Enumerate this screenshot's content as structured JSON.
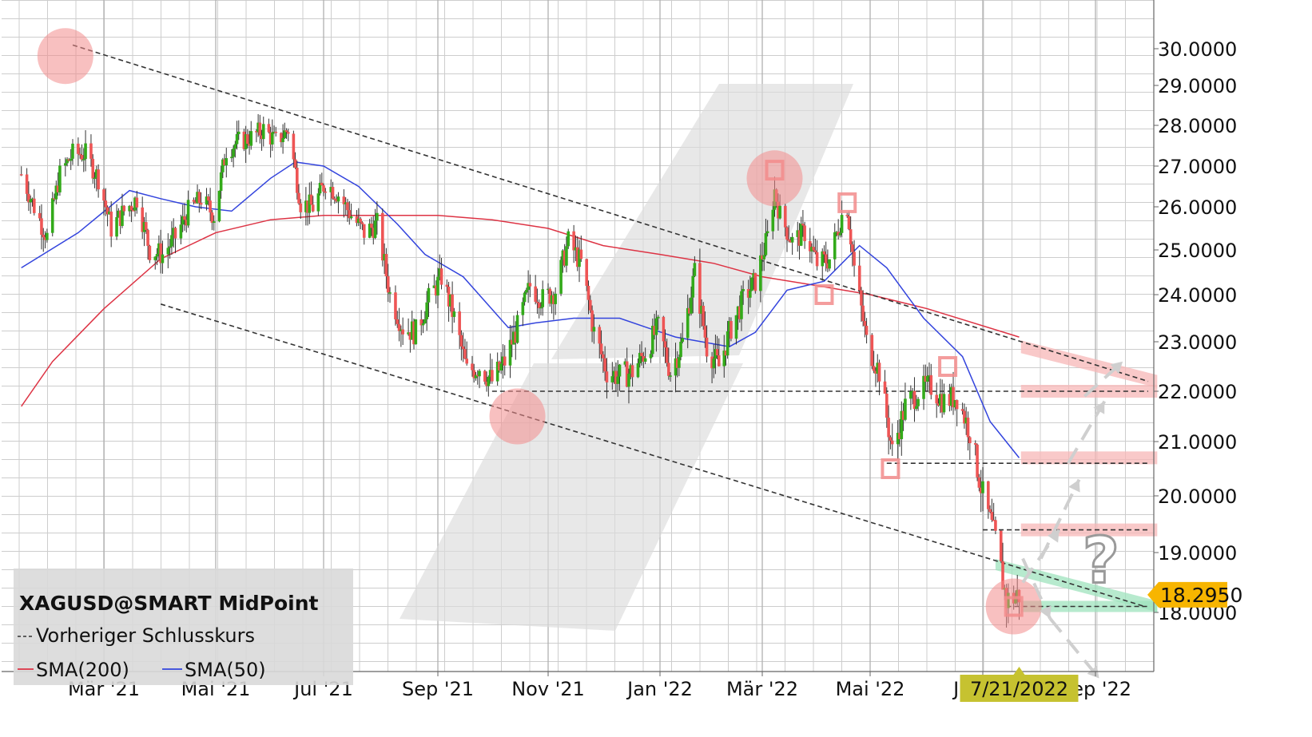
{
  "chart_data": {
    "type": "candlestick",
    "title": "XAGUSD@SMART MidPoint",
    "legend": {
      "placement": "bottom-left",
      "title": "XAGUSD@SMART MidPoint",
      "entries": [
        "Vorheriger Schlusskurs",
        "SMA(200)",
        "SMA(50)"
      ]
    },
    "y_axis": {
      "side": "right",
      "ticks": [
        "30.0000",
        "29.0000",
        "28.0000",
        "27.0000",
        "26.0000",
        "25.0000",
        "24.0000",
        "23.0000",
        "22.0000",
        "21.0000",
        "20.0000",
        "19.0000",
        "18.0000"
      ],
      "tick_values": [
        30,
        29,
        28,
        27,
        26,
        25,
        24,
        23,
        22,
        21,
        20,
        19,
        18
      ],
      "ylim": [
        17.0,
        30.8
      ],
      "scale": "log"
    },
    "x_axis": {
      "ticks": [
        "Mär '21",
        "Mai '21",
        "Jul '21",
        "Sep '21",
        "Nov '21",
        "Jan '22",
        "Mär '22",
        "Mai '22",
        "Jul '22",
        "Sep '22"
      ],
      "tick_dates": [
        "2021-03-01",
        "2021-05-01",
        "2021-07-01",
        "2021-09-01",
        "2021-11-01",
        "2022-01-01",
        "2022-03-01",
        "2022-05-01",
        "2022-07-01",
        "2022-09-01"
      ],
      "xlim": [
        "2021-01-15",
        "2022-10-05"
      ]
    },
    "grid": true,
    "current_price": "18.2950",
    "current_date": "7/21/2022",
    "annotation_text": "?",
    "colors": {
      "up": "#33aa1a",
      "down": "#ee5555",
      "sma200": "#dd3344",
      "sma50": "#3344dd",
      "price_badge": "#f7b500",
      "date_badge": "#c6c230",
      "circle": "#f28c8c",
      "zone_red": "#f7b7b7",
      "zone_green": "#9fe3bd"
    },
    "price_path": [
      [
        "2021-01-15",
        26.8
      ],
      [
        "2021-01-22",
        26.0
      ],
      [
        "2021-01-29",
        25.3
      ],
      [
        "2021-02-05",
        26.8
      ],
      [
        "2021-02-12",
        27.3
      ],
      [
        "2021-02-19",
        27.3
      ],
      [
        "2021-02-26",
        26.7
      ],
      [
        "2021-03-05",
        25.5
      ],
      [
        "2021-03-12",
        25.9
      ],
      [
        "2021-03-19",
        26.2
      ],
      [
        "2021-03-26",
        25.0
      ],
      [
        "2021-04-02",
        24.9
      ],
      [
        "2021-04-09",
        25.3
      ],
      [
        "2021-04-16",
        25.9
      ],
      [
        "2021-04-23",
        26.2
      ],
      [
        "2021-04-30",
        25.8
      ],
      [
        "2021-05-07",
        27.4
      ],
      [
        "2021-05-14",
        27.6
      ],
      [
        "2021-05-21",
        27.7
      ],
      [
        "2021-05-28",
        27.9
      ],
      [
        "2021-06-04",
        27.6
      ],
      [
        "2021-06-11",
        27.9
      ],
      [
        "2021-06-18",
        26.1
      ],
      [
        "2021-06-25",
        26.0
      ],
      [
        "2021-07-02",
        26.6
      ],
      [
        "2021-07-09",
        26.3
      ],
      [
        "2021-07-16",
        25.8
      ],
      [
        "2021-07-23",
        25.4
      ],
      [
        "2021-07-30",
        25.6
      ],
      [
        "2021-08-06",
        24.0
      ],
      [
        "2021-08-13",
        23.3
      ],
      [
        "2021-08-20",
        23.2
      ],
      [
        "2021-08-27",
        23.9
      ],
      [
        "2021-09-03",
        24.4
      ],
      [
        "2021-09-10",
        23.5
      ],
      [
        "2021-09-17",
        22.4
      ],
      [
        "2021-09-24",
        22.5
      ],
      [
        "2021-10-01",
        22.2
      ],
      [
        "2021-10-08",
        22.6
      ],
      [
        "2021-10-15",
        23.3
      ],
      [
        "2021-10-22",
        24.2
      ],
      [
        "2021-10-29",
        23.9
      ],
      [
        "2021-11-05",
        24.1
      ],
      [
        "2021-11-12",
        25.2
      ],
      [
        "2021-11-19",
        24.7
      ],
      [
        "2021-11-26",
        23.2
      ],
      [
        "2021-12-03",
        22.4
      ],
      [
        "2021-12-10",
        22.3
      ],
      [
        "2021-12-17",
        22.4
      ],
      [
        "2021-12-24",
        22.8
      ],
      [
        "2021-12-31",
        23.3
      ],
      [
        "2022-01-07",
        22.4
      ],
      [
        "2022-01-14",
        23.0
      ],
      [
        "2022-01-21",
        24.5
      ],
      [
        "2022-01-28",
        22.9
      ],
      [
        "2022-02-04",
        22.5
      ],
      [
        "2022-02-11",
        23.3
      ],
      [
        "2022-02-18",
        23.9
      ],
      [
        "2022-02-25",
        24.3
      ],
      [
        "2022-03-04",
        25.3
      ],
      [
        "2022-03-08",
        26.4
      ],
      [
        "2022-03-11",
        25.8
      ],
      [
        "2022-03-18",
        25.2
      ],
      [
        "2022-03-25",
        25.4
      ],
      [
        "2022-04-01",
        24.7
      ],
      [
        "2022-04-08",
        24.8
      ],
      [
        "2022-04-15",
        25.8
      ],
      [
        "2022-04-18",
        26.0
      ],
      [
        "2022-04-22",
        24.6
      ],
      [
        "2022-04-29",
        23.0
      ],
      [
        "2022-05-06",
        22.4
      ],
      [
        "2022-05-13",
        20.8
      ],
      [
        "2022-05-20",
        21.7
      ],
      [
        "2022-05-27",
        22.0
      ],
      [
        "2022-06-03",
        22.1
      ],
      [
        "2022-06-10",
        21.8
      ],
      [
        "2022-06-17",
        21.9
      ],
      [
        "2022-06-24",
        21.2
      ],
      [
        "2022-07-01",
        20.0
      ],
      [
        "2022-07-08",
        19.2
      ],
      [
        "2022-07-14",
        18.2
      ],
      [
        "2022-07-21",
        18.3
      ]
    ],
    "sma50_path": [
      [
        "2021-01-15",
        24.6
      ],
      [
        "2021-02-15",
        25.4
      ],
      [
        "2021-03-15",
        26.4
      ],
      [
        "2021-04-01",
        26.2
      ],
      [
        "2021-04-20",
        26.0
      ],
      [
        "2021-05-10",
        25.9
      ],
      [
        "2021-06-01",
        26.7
      ],
      [
        "2021-06-15",
        27.1
      ],
      [
        "2021-07-01",
        27.0
      ],
      [
        "2021-07-20",
        26.5
      ],
      [
        "2021-08-10",
        25.6
      ],
      [
        "2021-08-25",
        24.9
      ],
      [
        "2021-09-15",
        24.4
      ],
      [
        "2021-10-10",
        23.3
      ],
      [
        "2021-10-25",
        23.4
      ],
      [
        "2021-11-15",
        23.5
      ],
      [
        "2021-12-10",
        23.5
      ],
      [
        "2021-12-25",
        23.3
      ],
      [
        "2022-01-10",
        23.1
      ],
      [
        "2022-01-25",
        23.0
      ],
      [
        "2022-02-10",
        22.9
      ],
      [
        "2022-02-25",
        23.2
      ],
      [
        "2022-03-15",
        24.1
      ],
      [
        "2022-04-05",
        24.3
      ],
      [
        "2022-04-25",
        25.1
      ],
      [
        "2022-05-10",
        24.6
      ],
      [
        "2022-05-30",
        23.5
      ],
      [
        "2022-06-20",
        22.7
      ],
      [
        "2022-07-05",
        21.4
      ],
      [
        "2022-07-21",
        20.7
      ]
    ],
    "sma200_path": [
      [
        "2021-01-15",
        21.7
      ],
      [
        "2021-02-01",
        22.6
      ],
      [
        "2021-03-01",
        23.7
      ],
      [
        "2021-04-01",
        24.8
      ],
      [
        "2021-05-01",
        25.4
      ],
      [
        "2021-06-01",
        25.7
      ],
      [
        "2021-07-01",
        25.8
      ],
      [
        "2021-08-01",
        25.8
      ],
      [
        "2021-09-01",
        25.8
      ],
      [
        "2021-10-01",
        25.7
      ],
      [
        "2021-11-01",
        25.5
      ],
      [
        "2021-12-01",
        25.1
      ],
      [
        "2022-01-01",
        24.9
      ],
      [
        "2022-02-01",
        24.7
      ],
      [
        "2022-03-01",
        24.4
      ],
      [
        "2022-04-01",
        24.2
      ],
      [
        "2022-05-01",
        24.0
      ],
      [
        "2022-06-01",
        23.7
      ],
      [
        "2022-07-21",
        23.1
      ]
    ],
    "dashed_lines": [
      [
        [
          "2021-02-12",
          30.1
        ],
        [
          "2022-09-30",
          22.2
        ]
      ],
      [
        [
          "2021-04-01",
          23.8
        ],
        [
          "2022-09-28",
          18.1
        ]
      ],
      [
        [
          "2021-10-01",
          22.0
        ],
        [
          "2022-09-30",
          22.0
        ]
      ],
      [
        [
          "2022-05-10",
          20.6
        ],
        [
          "2022-09-30",
          20.6
        ]
      ],
      [
        [
          "2022-07-01",
          19.4
        ],
        [
          "2022-09-30",
          19.4
        ]
      ],
      [
        [
          "2022-07-14",
          18.1
        ],
        [
          "2022-09-30",
          18.1
        ]
      ]
    ],
    "circles": [
      [
        "2021-02-08",
        29.8
      ],
      [
        "2021-10-15",
        21.5
      ],
      [
        "2022-03-08",
        26.7
      ],
      [
        "2022-07-18",
        18.1
      ]
    ],
    "squares": [
      [
        "2022-03-08",
        26.9
      ],
      [
        "2022-04-18",
        26.1
      ],
      [
        "2022-04-05",
        24.0
      ],
      [
        "2022-05-12",
        20.5
      ],
      [
        "2022-06-12",
        22.5
      ],
      [
        "2022-07-18",
        18.1
      ]
    ],
    "zones_red": [
      [
        [
          "2022-07-22",
          22.9
        ],
        [
          "2022-10-05",
          22.2
        ]
      ],
      [
        [
          "2022-07-22",
          22.0
        ],
        [
          "2022-10-05",
          22.0
        ]
      ],
      [
        [
          "2022-07-22",
          20.7
        ],
        [
          "2022-10-05",
          20.7
        ]
      ],
      [
        [
          "2022-07-22",
          19.4
        ],
        [
          "2022-10-05",
          19.4
        ]
      ]
    ],
    "zones_green": [
      [
        [
          "2022-07-08",
          18.8
        ],
        [
          "2022-10-05",
          18.1
        ]
      ],
      [
        [
          "2022-07-22",
          18.1
        ],
        [
          "2022-10-05",
          18.1
        ]
      ]
    ],
    "scenario_arrows": [
      [
        [
          "2022-07-23",
          18.5
        ],
        [
          "2022-08-12",
          19.4
        ]
      ],
      [
        [
          "2022-08-02",
          18.9
        ],
        [
          "2022-08-23",
          20.3
        ]
      ],
      [
        [
          "2022-08-17",
          20.6
        ],
        [
          "2022-09-06",
          21.8
        ]
      ],
      [
        [
          "2022-08-26",
          21.9
        ],
        [
          "2022-09-16",
          22.6
        ]
      ],
      [
        [
          "2022-07-23",
          18.9
        ],
        [
          "2022-08-07",
          17.9
        ]
      ],
      [
        [
          "2022-08-07",
          17.9
        ],
        [
          "2022-09-03",
          16.9
        ]
      ]
    ]
  }
}
